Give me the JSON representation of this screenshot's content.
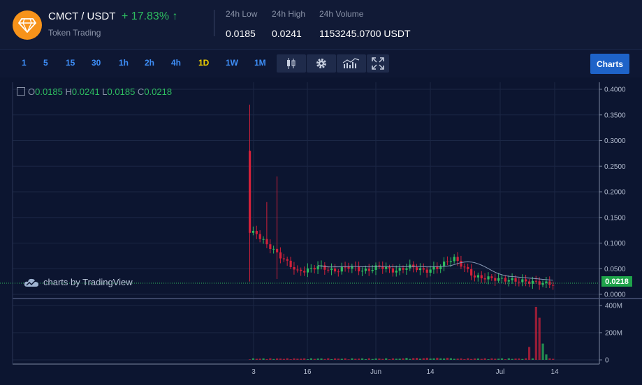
{
  "header": {
    "pair": "CMCT / USDT",
    "change": "+ 17.83%",
    "change_arrow": "↑",
    "subtitle": "Token Trading",
    "logo_icon": "diamond-icon",
    "stats": [
      {
        "label": "24h Low",
        "value": "0.0185"
      },
      {
        "label": "24h High",
        "value": "0.0241"
      },
      {
        "label": "24h Volume",
        "value": "1153245.0700 USDT"
      }
    ]
  },
  "toolbar": {
    "timeframes": [
      "1",
      "5",
      "15",
      "30",
      "1h",
      "2h",
      "4h",
      "1D",
      "1W",
      "1M"
    ],
    "active_timeframe": "1D",
    "tools": [
      "candlestick-icon",
      "gear-icon",
      "indicators-icon",
      "fullscreen-icon"
    ],
    "charts_label": "Charts"
  },
  "ohlc": {
    "o_label": "O",
    "o": "0.0185",
    "h_label": "H",
    "h": "0.0241",
    "l_label": "L",
    "l": "0.0185",
    "c_label": "C",
    "c": "0.0218"
  },
  "credit": "charts by TradingView",
  "chart_data": {
    "type": "candlestick",
    "price_axis_ticks": [
      "0.4000",
      "0.3500",
      "0.3000",
      "0.2500",
      "0.2000",
      "0.1500",
      "0.1000",
      "0.0500",
      "0.0000"
    ],
    "volume_axis_ticks": [
      "400M",
      "200M",
      "0"
    ],
    "x_tick_labels": [
      "3",
      "16",
      "Jun",
      "14",
      "Jul",
      "14"
    ],
    "last_price": "0.0218",
    "colors": {
      "up": "#2ebd60",
      "down": "#d3213a",
      "ma": "#8a9bb8"
    }
  }
}
